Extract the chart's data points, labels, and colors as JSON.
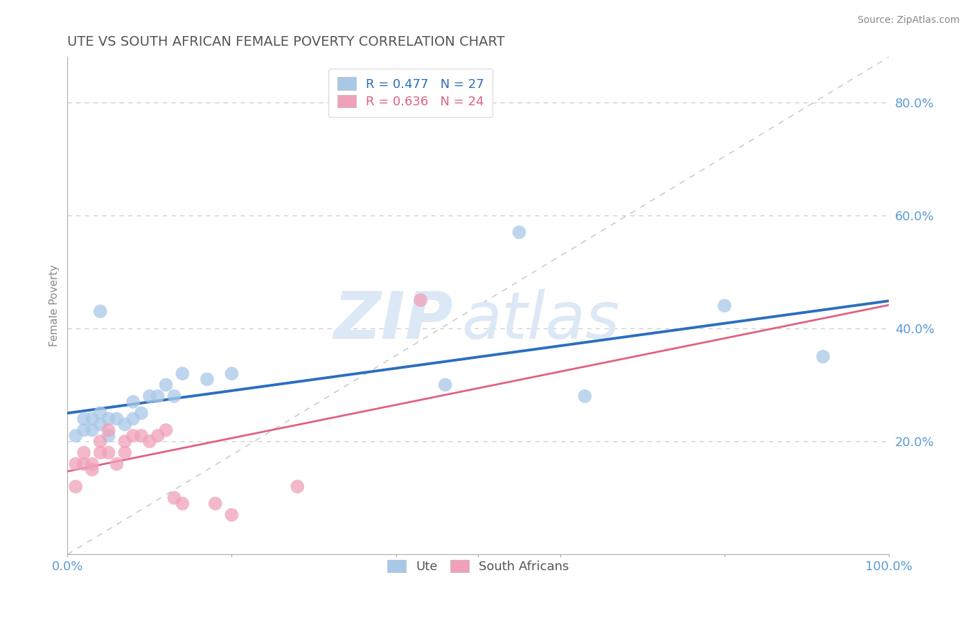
{
  "title": "UTE VS SOUTH AFRICAN FEMALE POVERTY CORRELATION CHART",
  "source_text": "Source: ZipAtlas.com",
  "ylabel": "Female Poverty",
  "xlim": [
    0.0,
    1.0
  ],
  "ylim": [
    0.0,
    0.88
  ],
  "ytick_labels": [
    "20.0%",
    "40.0%",
    "60.0%",
    "80.0%"
  ],
  "ytick_values": [
    0.2,
    0.4,
    0.6,
    0.8
  ],
  "grid_color": "#cccccc",
  "ute_color": "#A8C8E8",
  "sa_color": "#F0A0B8",
  "ute_line_color": "#2B6EBE",
  "sa_line_color": "#E06080",
  "diag_color": "#cccccc",
  "R_ute": 0.477,
  "N_ute": 27,
  "R_sa": 0.636,
  "N_sa": 24,
  "ute_scatter_x": [
    0.01,
    0.02,
    0.02,
    0.03,
    0.03,
    0.04,
    0.04,
    0.05,
    0.05,
    0.06,
    0.07,
    0.08,
    0.08,
    0.09,
    0.1,
    0.11,
    0.12,
    0.13,
    0.04,
    0.14,
    0.17,
    0.2,
    0.46,
    0.55,
    0.63,
    0.8,
    0.92
  ],
  "ute_scatter_y": [
    0.21,
    0.22,
    0.24,
    0.22,
    0.24,
    0.23,
    0.25,
    0.21,
    0.24,
    0.24,
    0.23,
    0.24,
    0.27,
    0.25,
    0.28,
    0.28,
    0.3,
    0.28,
    0.43,
    0.32,
    0.31,
    0.32,
    0.3,
    0.57,
    0.28,
    0.44,
    0.35
  ],
  "sa_scatter_x": [
    0.01,
    0.01,
    0.02,
    0.02,
    0.03,
    0.03,
    0.04,
    0.04,
    0.05,
    0.05,
    0.06,
    0.07,
    0.07,
    0.08,
    0.09,
    0.1,
    0.11,
    0.12,
    0.13,
    0.14,
    0.18,
    0.2,
    0.28,
    0.43
  ],
  "sa_scatter_y": [
    0.16,
    0.12,
    0.18,
    0.16,
    0.16,
    0.15,
    0.18,
    0.2,
    0.22,
    0.18,
    0.16,
    0.2,
    0.18,
    0.21,
    0.21,
    0.2,
    0.21,
    0.22,
    0.1,
    0.09,
    0.09,
    0.07,
    0.12,
    0.45
  ],
  "watermark_zip": "ZIP",
  "watermark_atlas": "atlas",
  "legend_ute_label": "Ute",
  "legend_sa_label": "South Africans",
  "title_color": "#555555",
  "tick_label_color": "#5B9BD5",
  "ylabel_color": "#888888"
}
